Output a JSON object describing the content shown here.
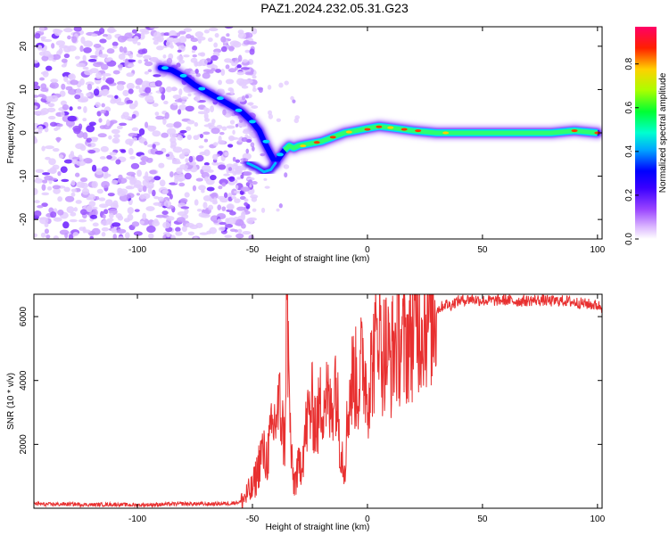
{
  "figure_title": "PAZ1.2024.232.05.31.G23",
  "chart_data": [
    {
      "type": "heatmap",
      "name": "spectrogram",
      "title": "",
      "xlabel": "Height of straight line (km)",
      "ylabel": "Frequency (Hz)",
      "xlim": [
        -145,
        102
      ],
      "ylim": [
        -24.5,
        24.5
      ],
      "xticks": [
        -100,
        -50,
        0,
        50,
        100
      ],
      "yticks": [
        -20,
        -10,
        0,
        10,
        20
      ],
      "xticklabels": [
        "-100",
        "-50",
        "0",
        "50",
        "100"
      ],
      "yticklabels": [
        "-20",
        "-10",
        "0",
        "10",
        "20"
      ],
      "colorbar": {
        "label": "Normalized spectral amplitude",
        "range": [
          0,
          0.97
        ],
        "ticks": [
          0.0,
          0.2,
          0.4,
          0.6,
          0.8
        ],
        "ticklabels": [
          "0.0",
          "0.2",
          "0.4",
          "0.6",
          "0.8"
        ],
        "colors": [
          "#ffffff",
          "#b36bff",
          "#4b00ff",
          "#0000ff",
          "#00d5ff",
          "#00ff55",
          "#aaff00",
          "#ffd000",
          "#ff0000",
          "#ff0066"
        ]
      },
      "ridge_trace": {
        "x": [
          -90,
          -85,
          -80,
          -75,
          -70,
          -65,
          -60,
          -55,
          -50,
          -47,
          -45,
          -42,
          -40,
          -38,
          -36,
          -34,
          -32,
          -30,
          -25,
          -20,
          -15,
          -10,
          -5,
          0,
          5,
          10,
          20,
          30,
          40,
          50,
          60,
          70,
          80,
          90,
          100
        ],
        "y": [
          15,
          14.5,
          13,
          11,
          9.5,
          8,
          6.5,
          5,
          2.5,
          0.5,
          -2,
          -5,
          -7,
          -5.5,
          -4,
          -3,
          -3.5,
          -3,
          -2.5,
          -2,
          -1,
          0,
          0.5,
          1,
          1.5,
          1.2,
          0.5,
          0,
          0,
          0,
          0,
          0,
          0,
          0.5,
          0
        ]
      },
      "lower_branch": {
        "x": [
          -52,
          -48,
          -45,
          -42,
          -40
        ],
        "y": [
          -7,
          -8,
          -9,
          -8.5,
          -7
        ]
      },
      "noise_region_x": [
        -145,
        -57
      ]
    },
    {
      "type": "line",
      "name": "snr",
      "title": "",
      "xlabel": "Height of straight line (km)",
      "ylabel": "SNR (10 * v/v)",
      "xlim": [
        -145,
        102
      ],
      "ylim": [
        0,
        6700
      ],
      "xticks": [
        -100,
        -50,
        0,
        50,
        100
      ],
      "yticks": [
        2000,
        4000,
        6000
      ],
      "xticklabels": [
        "-100",
        "-50",
        "0",
        "50",
        "100"
      ],
      "yticklabels": [
        "2000",
        "4000",
        "6000"
      ],
      "color": "#e83030",
      "series": [
        {
          "x": [
            -145,
            -140,
            -130,
            -120,
            -110,
            -100,
            -90,
            -80,
            -70,
            -60,
            -55,
            -52,
            -50,
            -48,
            -46,
            -44,
            -42,
            -40,
            -38,
            -36,
            -35,
            -34,
            -33,
            -32,
            -30,
            -28,
            -26,
            -24,
            -22,
            -20,
            -18,
            -16,
            -14,
            -12,
            -10,
            -8,
            -6,
            -4,
            -2,
            0,
            2,
            4,
            5,
            6,
            8,
            10,
            12,
            14,
            16,
            18,
            20,
            22,
            24,
            26,
            28,
            30,
            32,
            34,
            36,
            38,
            40,
            45,
            50,
            55,
            60,
            65,
            70,
            75,
            80,
            85,
            90,
            95,
            100,
            102
          ],
          "y": [
            150,
            120,
            130,
            110,
            120,
            100,
            120,
            140,
            130,
            150,
            200,
            450,
            600,
            1100,
            1800,
            1500,
            2200,
            2800,
            3200,
            2000,
            6600,
            3500,
            1400,
            800,
            1200,
            1800,
            2800,
            3200,
            2600,
            3400,
            3600,
            2900,
            4200,
            2200,
            1300,
            3500,
            4200,
            3800,
            4700,
            3600,
            4500,
            5200,
            6500,
            4800,
            5000,
            4600,
            5200,
            5300,
            5000,
            5400,
            5600,
            5800,
            5900,
            6000,
            6100,
            6200,
            6300,
            6400,
            6350,
            6450,
            6500,
            6550,
            6500,
            6500,
            6520,
            6480,
            6500,
            6520,
            6480,
            6500,
            6450,
            6400,
            6350,
            6300
          ]
        }
      ]
    }
  ]
}
